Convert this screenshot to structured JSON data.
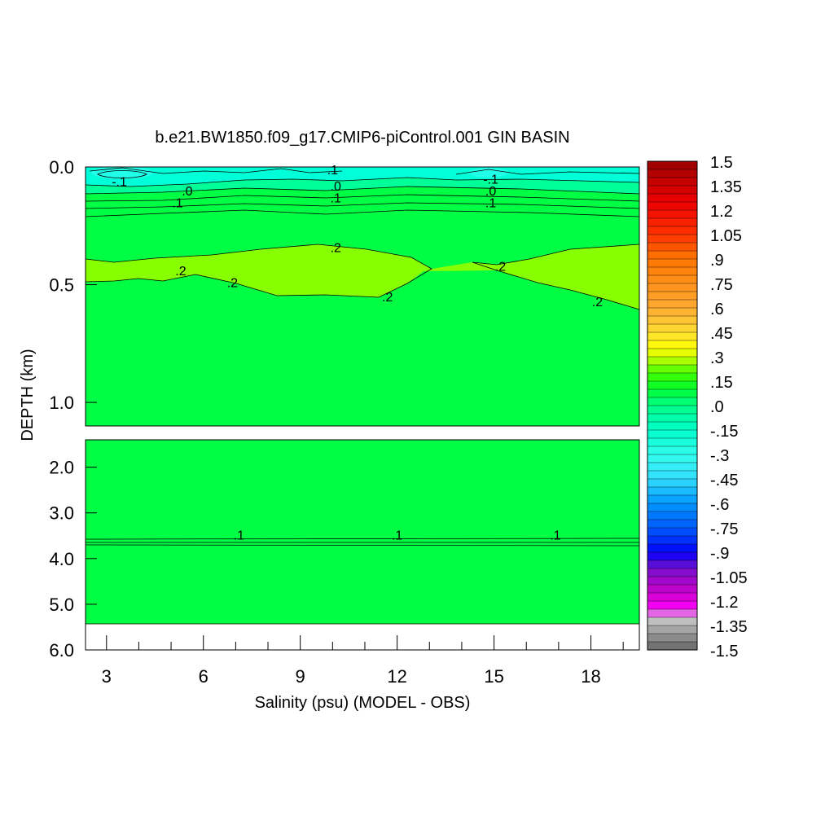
{
  "chart_data": {
    "type": "heatmap",
    "title": "b.e21.BW1850.f09_g17.CMIP6-piControl.001 GIN BASIN",
    "xlabel": "Salinity (psu) (MODEL - OBS)",
    "ylabel": "DEPTH (km)",
    "xlim": [
      2.35,
      19.5
    ],
    "x_ticks": [
      "3",
      "6",
      "9",
      "12",
      "15",
      "18"
    ],
    "x_tick_values": [
      3,
      6,
      9,
      12,
      15,
      18
    ],
    "x_minor_step": 1,
    "upper_panel": {
      "ylim": [
        0.0,
        1.1
      ],
      "y_ticks": [
        "0.0",
        "0.5",
        "1.0"
      ],
      "y_tick_values": [
        0.0,
        0.5,
        1.0
      ],
      "fill_bottom": 1.1
    },
    "lower_panel": {
      "ylim": [
        1.4,
        6.0
      ],
      "y_ticks": [
        "2.0",
        "3.0",
        "4.0",
        "5.0",
        "6.0"
      ],
      "y_tick_values": [
        2.0,
        3.0,
        4.0,
        5.0,
        6.0
      ],
      "fill_bottom": 5.36
    },
    "contour_labels": [
      {
        "text": "-.1",
        "x": 3.4,
        "y": 0.06
      },
      {
        "text": ".0",
        "x": 5.5,
        "y": 0.1
      },
      {
        "text": ".1",
        "x": 5.2,
        "y": 0.15
      },
      {
        "text": ".1",
        "x": 10.0,
        "y": 0.01
      },
      {
        "text": ".0",
        "x": 10.1,
        "y": 0.08
      },
      {
        "text": ".1",
        "x": 10.1,
        "y": 0.13
      },
      {
        "text": "-.1",
        "x": 14.9,
        "y": 0.05
      },
      {
        "text": ".0",
        "x": 14.9,
        "y": 0.1
      },
      {
        "text": ".1",
        "x": 14.9,
        "y": 0.15
      },
      {
        "text": ".2",
        "x": 10.1,
        "y": 0.34
      },
      {
        "text": ".2",
        "x": 5.3,
        "y": 0.44
      },
      {
        "text": ".2",
        "x": 6.9,
        "y": 0.49
      },
      {
        "text": ".2",
        "x": 11.7,
        "y": 0.55
      },
      {
        "text": ".2",
        "x": 15.2,
        "y": 0.42
      },
      {
        "text": ".2",
        "x": 18.2,
        "y": 0.57
      },
      {
        "text": ".1",
        "x": 7.1,
        "y": 3.48
      },
      {
        "text": ".1",
        "x": 12.0,
        "y": 3.48
      },
      {
        "text": ".1",
        "x": 16.9,
        "y": 3.48
      }
    ],
    "colorbar": {
      "range": [
        -1.5,
        1.5
      ],
      "step": 0.05,
      "labels": [
        "1.5",
        "1.35",
        "1.2",
        "1.05",
        ".9",
        ".75",
        ".6",
        ".45",
        ".3",
        ".15",
        ".0",
        "-.15",
        "-.3",
        "-.45",
        "-.6",
        "-.75",
        "-.9",
        "-1.05",
        "-1.2",
        "-1.35",
        "-1.5"
      ],
      "label_values": [
        1.5,
        1.35,
        1.2,
        1.05,
        0.9,
        0.75,
        0.6,
        0.45,
        0.3,
        0.15,
        0.0,
        -0.15,
        -0.3,
        -0.45,
        -0.6,
        -0.75,
        -0.9,
        -1.05,
        -1.2,
        -1.35,
        -1.5
      ]
    },
    "colors": {
      "green": "#00ff44",
      "lime": "#88ff00",
      "cyan": "#00ffd8",
      "teal": "#00ff98",
      "cyan_light": "#22ffe8"
    },
    "grid": false,
    "legend": "right"
  }
}
